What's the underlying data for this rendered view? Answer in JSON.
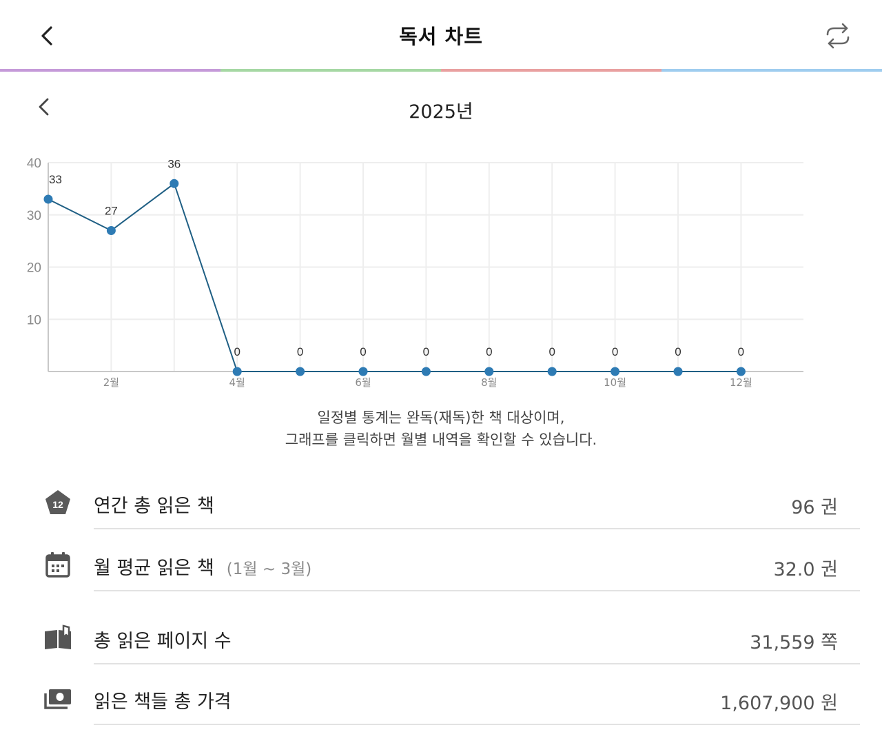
{
  "header": {
    "title": "독서 차트",
    "back_icon": "chevron-left-icon",
    "refresh_icon": "repeat-arrows-icon"
  },
  "colors": {
    "bar": [
      "#c59ad9",
      "#a6d8a4",
      "#e9a0a0",
      "#9fcdef"
    ],
    "line": "#1f5f84",
    "point": "#2e7bb4",
    "grid": "#eeeeee",
    "axis": "#c8c8c8",
    "icon": "#555555"
  },
  "year_nav": {
    "label": "2025년",
    "prev_icon": "chevron-left-icon"
  },
  "chart_data": {
    "type": "line",
    "x": [
      1,
      2,
      3,
      4,
      5,
      6,
      7,
      8,
      9,
      10,
      11,
      12
    ],
    "xtick_labels": [
      "2월",
      "4월",
      "6월",
      "8월",
      "10월",
      "12월"
    ],
    "xtick_positions": [
      2,
      4,
      6,
      8,
      10,
      12
    ],
    "values": [
      33,
      27,
      36,
      0,
      0,
      0,
      0,
      0,
      0,
      0,
      0,
      0
    ],
    "data_labels": [
      "33",
      "27",
      "36",
      "0",
      "0",
      "0",
      "0",
      "0",
      "0",
      "0",
      "0",
      "0"
    ],
    "yticks": [
      10,
      20,
      30,
      40
    ],
    "ytick_labels": [
      "10",
      "20",
      "30",
      "40"
    ],
    "ylim": [
      0,
      40
    ],
    "grid": true,
    "title": "",
    "xlabel": "",
    "ylabel": ""
  },
  "note": {
    "line1": "일정별 통계는 완독(재독)한 책 대상이며,",
    "line2": "그래프를 클릭하면 월별 내역을 확인할 수 있습니다."
  },
  "stats": [
    {
      "icon": "pentagon-badge-icon",
      "badge": "12",
      "label": "연간 총 읽은 책",
      "sub": "",
      "value": "96 권"
    },
    {
      "icon": "calendar-icon",
      "label": "월 평균 읽은 책",
      "sub": "(1월 ~ 3월)",
      "value": "32.0 권"
    },
    {
      "icon": "open-book-icon",
      "label": "총 읽은 페이지 수",
      "sub": "",
      "value": "31,559 쪽"
    },
    {
      "icon": "money-icon",
      "label": "읽은 책들 총 가격",
      "sub": "",
      "value": "1,607,900 원"
    }
  ]
}
